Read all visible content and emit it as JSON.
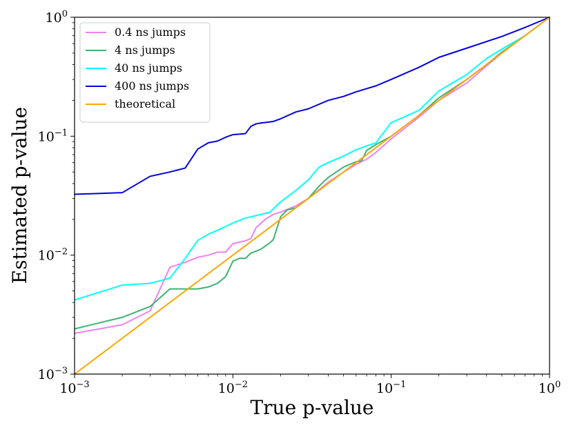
{
  "chart_data": {
    "type": "line",
    "xscale": "log",
    "yscale": "log",
    "xlim": [
      0.001,
      1
    ],
    "ylim": [
      0.001,
      1
    ],
    "xlabel": "True p-value",
    "ylabel": "Estimated p-value",
    "xticks": [
      {
        "value": 0.001,
        "base": "10",
        "exp": "−3"
      },
      {
        "value": 0.01,
        "base": "10",
        "exp": "−2"
      },
      {
        "value": 0.1,
        "base": "10",
        "exp": "−1"
      },
      {
        "value": 1,
        "base": "10",
        "exp": "0"
      }
    ],
    "yticks": [
      {
        "value": 0.001,
        "base": "10",
        "exp": "−3"
      },
      {
        "value": 0.01,
        "base": "10",
        "exp": "−2"
      },
      {
        "value": 0.1,
        "base": "10",
        "exp": "−1"
      },
      {
        "value": 1,
        "base": "10",
        "exp": "0"
      }
    ],
    "legend_position": "top-left",
    "series": [
      {
        "name": "0.4 ns jumps",
        "color": "#ee82ee",
        "x": [
          0.001,
          0.002,
          0.003,
          0.004,
          0.005,
          0.006,
          0.007,
          0.008,
          0.009,
          0.01,
          0.012,
          0.013,
          0.014,
          0.016,
          0.018,
          0.02,
          0.025,
          0.03,
          0.04,
          0.05,
          0.06,
          0.07,
          0.08,
          0.1,
          0.15,
          0.2,
          0.3,
          0.4,
          0.5,
          0.7,
          1.0
        ],
        "y": [
          0.0022,
          0.0026,
          0.0034,
          0.0079,
          0.0087,
          0.0096,
          0.01,
          0.0106,
          0.0106,
          0.0125,
          0.0132,
          0.0138,
          0.017,
          0.02,
          0.022,
          0.023,
          0.026,
          0.03,
          0.041,
          0.05,
          0.058,
          0.064,
          0.073,
          0.095,
          0.145,
          0.2,
          0.28,
          0.39,
          0.5,
          0.7,
          1.0
        ]
      },
      {
        "name": "4 ns jumps",
        "color": "#3cb371",
        "x": [
          0.001,
          0.002,
          0.003,
          0.004,
          0.005,
          0.006,
          0.007,
          0.008,
          0.009,
          0.01,
          0.011,
          0.012,
          0.013,
          0.015,
          0.017,
          0.018,
          0.02,
          0.022,
          0.025,
          0.03,
          0.035,
          0.04,
          0.045,
          0.05,
          0.06,
          0.065,
          0.07,
          0.08,
          0.1,
          0.15,
          0.2,
          0.3,
          0.4,
          0.5,
          0.7,
          1.0
        ],
        "y": [
          0.0024,
          0.003,
          0.0037,
          0.0052,
          0.0052,
          0.0052,
          0.0054,
          0.0058,
          0.0066,
          0.0089,
          0.0094,
          0.0094,
          0.0104,
          0.0112,
          0.0126,
          0.0135,
          0.021,
          0.024,
          0.025,
          0.03,
          0.038,
          0.045,
          0.05,
          0.055,
          0.061,
          0.062,
          0.076,
          0.085,
          0.1,
          0.15,
          0.21,
          0.3,
          0.4,
          0.51,
          0.7,
          1.0
        ]
      },
      {
        "name": "40 ns jumps",
        "color": "#00ffff",
        "x": [
          0.001,
          0.002,
          0.003,
          0.004,
          0.005,
          0.006,
          0.007,
          0.008,
          0.01,
          0.012,
          0.013,
          0.015,
          0.017,
          0.02,
          0.025,
          0.03,
          0.035,
          0.04,
          0.05,
          0.06,
          0.07,
          0.08,
          0.1,
          0.15,
          0.2,
          0.3,
          0.4,
          0.5,
          0.7,
          1.0
        ],
        "y": [
          0.0042,
          0.0056,
          0.0058,
          0.0064,
          0.0094,
          0.0133,
          0.015,
          0.0162,
          0.0186,
          0.0205,
          0.021,
          0.022,
          0.0228,
          0.028,
          0.035,
          0.043,
          0.055,
          0.06,
          0.068,
          0.077,
          0.083,
          0.088,
          0.13,
          0.165,
          0.24,
          0.33,
          0.45,
          0.54,
          0.7,
          1.0
        ]
      },
      {
        "name": "400 ns jumps",
        "color": "#0000dd",
        "x": [
          0.001,
          0.002,
          0.003,
          0.004,
          0.005,
          0.006,
          0.007,
          0.008,
          0.009,
          0.01,
          0.012,
          0.013,
          0.014,
          0.015,
          0.018,
          0.02,
          0.025,
          0.03,
          0.04,
          0.05,
          0.06,
          0.08,
          0.1,
          0.15,
          0.2,
          0.3,
          0.5,
          0.7,
          1.0
        ],
        "y": [
          0.0325,
          0.0335,
          0.046,
          0.05,
          0.054,
          0.078,
          0.088,
          0.091,
          0.098,
          0.103,
          0.105,
          0.121,
          0.127,
          0.129,
          0.133,
          0.14,
          0.16,
          0.17,
          0.2,
          0.216,
          0.236,
          0.265,
          0.3,
          0.38,
          0.46,
          0.55,
          0.69,
          0.82,
          1.0
        ]
      },
      {
        "name": "theoretical",
        "color": "#ffa500",
        "x": [
          0.001,
          1.0
        ],
        "y": [
          0.001,
          1.0
        ]
      }
    ]
  }
}
